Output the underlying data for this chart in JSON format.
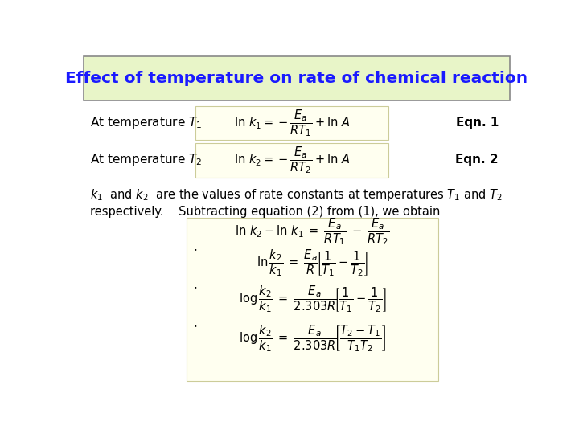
{
  "title": "Effect of temperature on rate of chemical reaction",
  "title_color": "#1a1aff",
  "title_bg_color": "#e8f5c8",
  "title_border_color": "#888888",
  "bg_color": "#ffffff",
  "formula_bg_color": "#fffff0",
  "formula_border_color": "#cccc99",
  "bold_text_color": "#000000",
  "line1_label": "At temperature $T_1$",
  "line2_label": "At temperature $T_2$",
  "eqn1": "Eqn. 1",
  "eqn2": "Eqn. 2",
  "formula1": "$\\ln\\, k_1 = -\\dfrac{E_a}{RT_1} + \\ln\\, A$",
  "formula2": "$\\ln\\, k_2 = -\\dfrac{E_a}{RT_2} + \\ln\\, A$",
  "desc_line1": "$k_1$  and $k_2$  are the values of rate constants at temperatures $T_1$ and $T_2$",
  "desc_line2": "respectively.    Subtracting equation (2) from (1), we obtain",
  "eq3": "$\\ln\\, k_2 - \\ln\\, k_1\\; =\\; \\dfrac{E_a}{RT_1}\\; -\\; \\dfrac{E_a}{RT_2}$",
  "eq4": "$\\ln\\dfrac{k_2}{k_1}\\; =\\; \\dfrac{E_a}{R}\\!\\left[\\dfrac{1}{T_1} - \\dfrac{1}{T_2}\\right]$",
  "eq5": "$\\log\\dfrac{k_2}{k_1}\\; =\\; \\dfrac{E_a}{2.303R}\\!\\left[\\dfrac{1}{T_1} - \\dfrac{1}{T_2}\\right]$",
  "eq6": "$\\log\\dfrac{k_2}{k_1}\\; =\\; \\dfrac{E_a}{2.303R}\\!\\left[\\dfrac{T_2 - T_1}{T_1 T_2}\\right]$"
}
